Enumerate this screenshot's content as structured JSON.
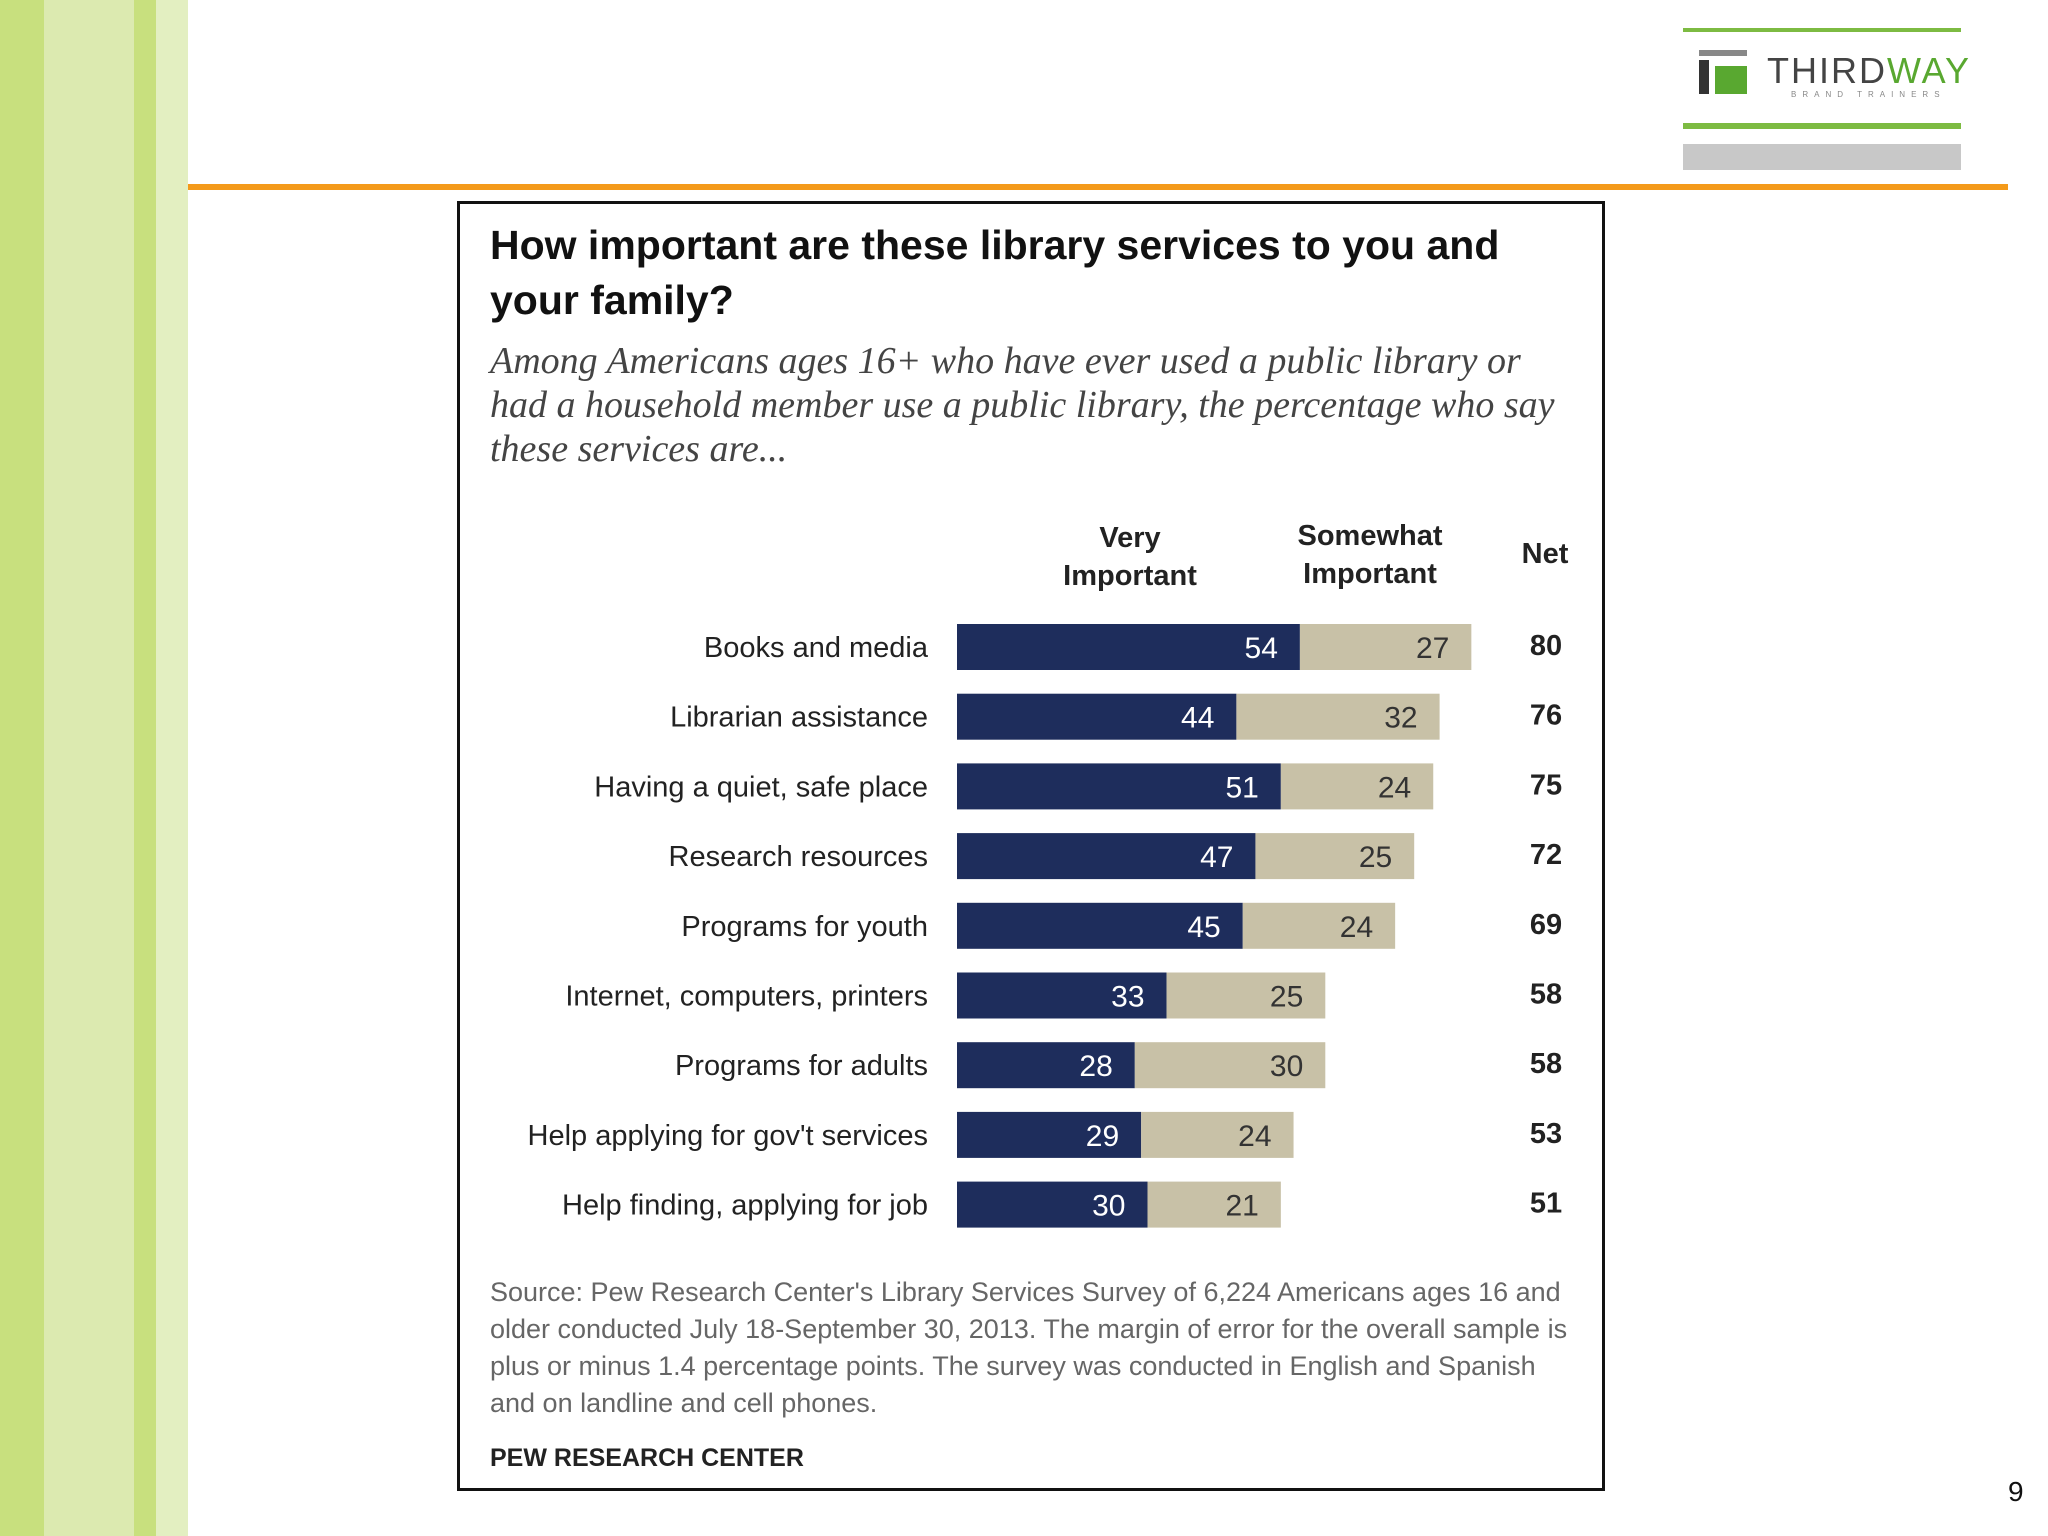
{
  "slide": {
    "page_number": "9"
  },
  "logo": {
    "word_a": "THIRD",
    "word_b": "WAY",
    "tagline": "BRAND TRAINERS"
  },
  "colors": {
    "very": "#1e2d5c",
    "somewhat": "#c8c1a7",
    "accent_orange": "#f49a1a",
    "accent_green": "#7dbb42"
  },
  "chart_data": {
    "type": "bar",
    "orientation": "horizontal",
    "stacked": true,
    "title": "How important are these library services to you and your family?",
    "subtitle": "Among Americans ages 16+ who have ever used a public library or had a household member use a public library, the percentage who say these services are...",
    "column_headers": {
      "very": "Very Important",
      "somewhat": "Somewhat Important",
      "net": "Net"
    },
    "categories": [
      "Books and media",
      "Librarian assistance",
      "Having a quiet, safe place",
      "Research resources",
      "Programs for youth",
      "Internet, computers, printers",
      "Programs for adults",
      "Help applying for gov't services",
      "Help finding, applying for job"
    ],
    "series": [
      {
        "name": "Very Important",
        "values": [
          54,
          44,
          51,
          47,
          45,
          33,
          28,
          29,
          30
        ]
      },
      {
        "name": "Somewhat Important",
        "values": [
          27,
          32,
          24,
          25,
          24,
          25,
          30,
          24,
          21
        ]
      }
    ],
    "net": [
      80,
      76,
      75,
      72,
      69,
      58,
      58,
      53,
      51
    ],
    "source": "Source: Pew Research Center's Library Services Survey of 6,224 Americans ages 16 and older conducted July 18-September 30, 2013. The margin of error for the overall sample is plus or minus 1.4 percentage points. The survey was conducted in English and Spanish and on landline and cell phones.",
    "brand": "PEW RESEARCH CENTER"
  }
}
